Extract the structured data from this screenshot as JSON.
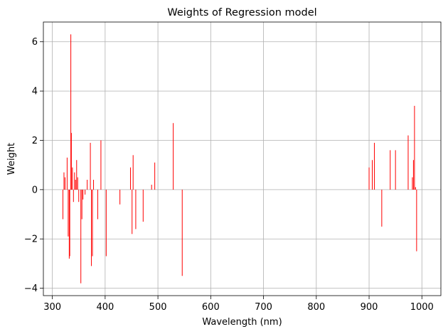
{
  "chart_data": {
    "type": "bar",
    "title": "Weights of Regression model",
    "xlabel": "Wavelength (nm)",
    "ylabel": "Weight",
    "xlim": [
      283,
      1036
    ],
    "ylim": [
      -4.3,
      6.8
    ],
    "xticks": [
      300,
      400,
      500,
      600,
      700,
      800,
      900,
      1000
    ],
    "yticks": [
      -4,
      -2,
      0,
      2,
      4,
      6
    ],
    "xtick_labels": [
      "300",
      "400",
      "500",
      "600",
      "700",
      "800",
      "900",
      "1000"
    ],
    "ytick_labels": [
      "−4",
      "−2",
      "0",
      "2",
      "4",
      "6"
    ],
    "grid": true,
    "bar_color": "#ff0000",
    "bar_width": 1,
    "x": [
      320,
      322,
      324,
      328,
      330,
      332,
      333,
      335,
      336,
      338,
      340,
      342,
      344,
      346,
      348,
      350,
      354,
      356,
      358,
      362,
      366,
      372,
      374,
      376,
      378,
      386,
      392,
      402,
      428,
      448,
      451,
      453,
      458,
      472,
      488,
      494,
      529,
      546,
      900,
      906,
      910,
      924,
      940,
      950,
      974,
      982,
      984,
      986,
      988,
      990
    ],
    "values": [
      -1.2,
      0.7,
      0.5,
      1.3,
      -1.9,
      -2.8,
      -2.7,
      6.3,
      2.3,
      0.9,
      -0.5,
      0.7,
      0.4,
      1.2,
      0.5,
      -0.5,
      -3.8,
      -1.2,
      -0.4,
      -0.2,
      0.4,
      1.9,
      -3.1,
      -2.7,
      0.4,
      -1.2,
      2.0,
      -2.7,
      -0.6,
      0.9,
      -1.8,
      1.4,
      -1.6,
      -1.3,
      0.2,
      1.1,
      2.7,
      -3.5,
      0.9,
      1.2,
      1.9,
      -1.5,
      1.6,
      1.6,
      2.2,
      0.5,
      1.2,
      3.4,
      0.1,
      -2.5
    ]
  }
}
